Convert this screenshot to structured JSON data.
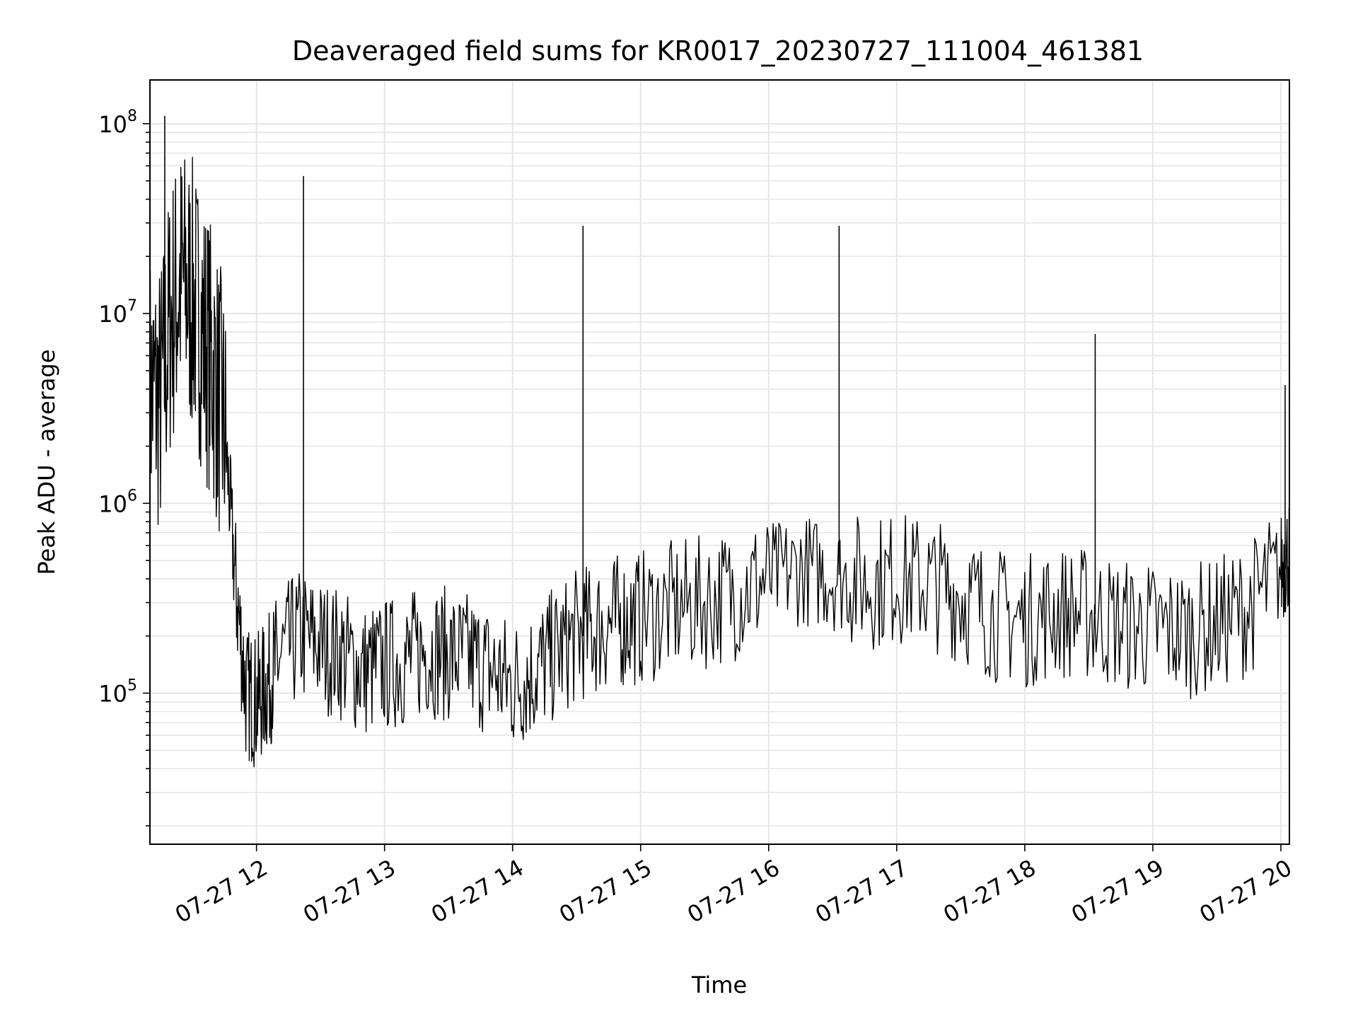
{
  "chart_data": {
    "type": "line",
    "title": "Deaveraged field sums for KR0017_20230727_111004_461381",
    "xlabel": "Time",
    "ylabel": "Peak ADU - average",
    "y_scale": "log",
    "ylim": [
      16000,
      170000000
    ],
    "xlim": [
      "2023-07-27 11:10:04",
      "2023-07-27 20:04:00"
    ],
    "grid": true,
    "line_color": "#000000",
    "grid_color": "#e6e6e6",
    "x_ticks": [
      {
        "time": "2023-07-27 12:00",
        "label": "07-27 12"
      },
      {
        "time": "2023-07-27 13:00",
        "label": "07-27 13"
      },
      {
        "time": "2023-07-27 14:00",
        "label": "07-27 14"
      },
      {
        "time": "2023-07-27 15:00",
        "label": "07-27 15"
      },
      {
        "time": "2023-07-27 16:00",
        "label": "07-27 16"
      },
      {
        "time": "2023-07-27 17:00",
        "label": "07-27 17"
      },
      {
        "time": "2023-07-27 18:00",
        "label": "07-27 18"
      },
      {
        "time": "2023-07-27 19:00",
        "label": "07-27 19"
      },
      {
        "time": "2023-07-27 20:00",
        "label": "07-27 20"
      }
    ],
    "y_ticks": [
      {
        "value": 100000,
        "base": "10",
        "exp": "5"
      },
      {
        "value": 1000000,
        "base": "10",
        "exp": "6"
      },
      {
        "value": 10000000,
        "base": "10",
        "exp": "7"
      },
      {
        "value": 100000000,
        "base": "10",
        "exp": "8"
      }
    ],
    "series": [
      {
        "x": [
          "2023-07-27 11:10",
          "2023-07-27 11:15",
          "2023-07-27 11:20",
          "2023-07-27 11:25",
          "2023-07-27 11:30",
          "2023-07-27 11:35",
          "2023-07-27 11:40",
          "2023-07-27 11:45",
          "2023-07-27 11:50",
          "2023-07-27 11:55",
          "2023-07-27 12:00",
          "2023-07-27 12:05",
          "2023-07-27 12:10",
          "2023-07-27 12:20",
          "2023-07-27 12:30",
          "2023-07-27 12:40",
          "2023-07-27 12:50",
          "2023-07-27 13:00",
          "2023-07-27 13:10",
          "2023-07-27 13:20",
          "2023-07-27 13:30",
          "2023-07-27 13:40",
          "2023-07-27 13:50",
          "2023-07-27 14:00",
          "2023-07-27 14:10",
          "2023-07-27 14:20",
          "2023-07-27 14:30",
          "2023-07-27 14:40",
          "2023-07-27 14:50",
          "2023-07-27 15:00",
          "2023-07-27 15:15",
          "2023-07-27 15:30",
          "2023-07-27 15:45",
          "2023-07-27 16:00",
          "2023-07-27 16:15",
          "2023-07-27 16:30",
          "2023-07-27 16:45",
          "2023-07-27 17:00",
          "2023-07-27 17:15",
          "2023-07-27 17:30",
          "2023-07-27 17:45",
          "2023-07-27 18:00",
          "2023-07-27 18:15",
          "2023-07-27 18:30",
          "2023-07-27 18:45",
          "2023-07-27 19:00",
          "2023-07-27 19:15",
          "2023-07-27 19:30",
          "2023-07-27 19:45",
          "2023-07-27 20:00",
          "2023-07-27 20:04"
        ],
        "y": [
          4000000,
          3500000,
          10000000,
          15000000,
          12000000,
          8000000,
          5000000,
          2500000,
          400000,
          100000,
          90000,
          110000,
          150000,
          200000,
          180000,
          160000,
          130000,
          140000,
          150000,
          170000,
          160000,
          150000,
          130000,
          110000,
          130000,
          160000,
          200000,
          220000,
          240000,
          250000,
          280000,
          300000,
          340000,
          400000,
          450000,
          420000,
          380000,
          400000,
          380000,
          330000,
          260000,
          240000,
          270000,
          260000,
          230000,
          220000,
          210000,
          230000,
          280000,
          450000,
          550000
        ]
      }
    ],
    "spikes": [
      {
        "x": "2023-07-27 11:17",
        "y": 110000000
      },
      {
        "x": "2023-07-27 12:22",
        "y": 53000000
      },
      {
        "x": "2023-07-27 14:33",
        "y": 29000000
      },
      {
        "x": "2023-07-27 16:33",
        "y": 29000000
      },
      {
        "x": "2023-07-27 18:33",
        "y": 7800000
      },
      {
        "x": "2023-07-27 20:02",
        "y": 4200000
      }
    ]
  }
}
